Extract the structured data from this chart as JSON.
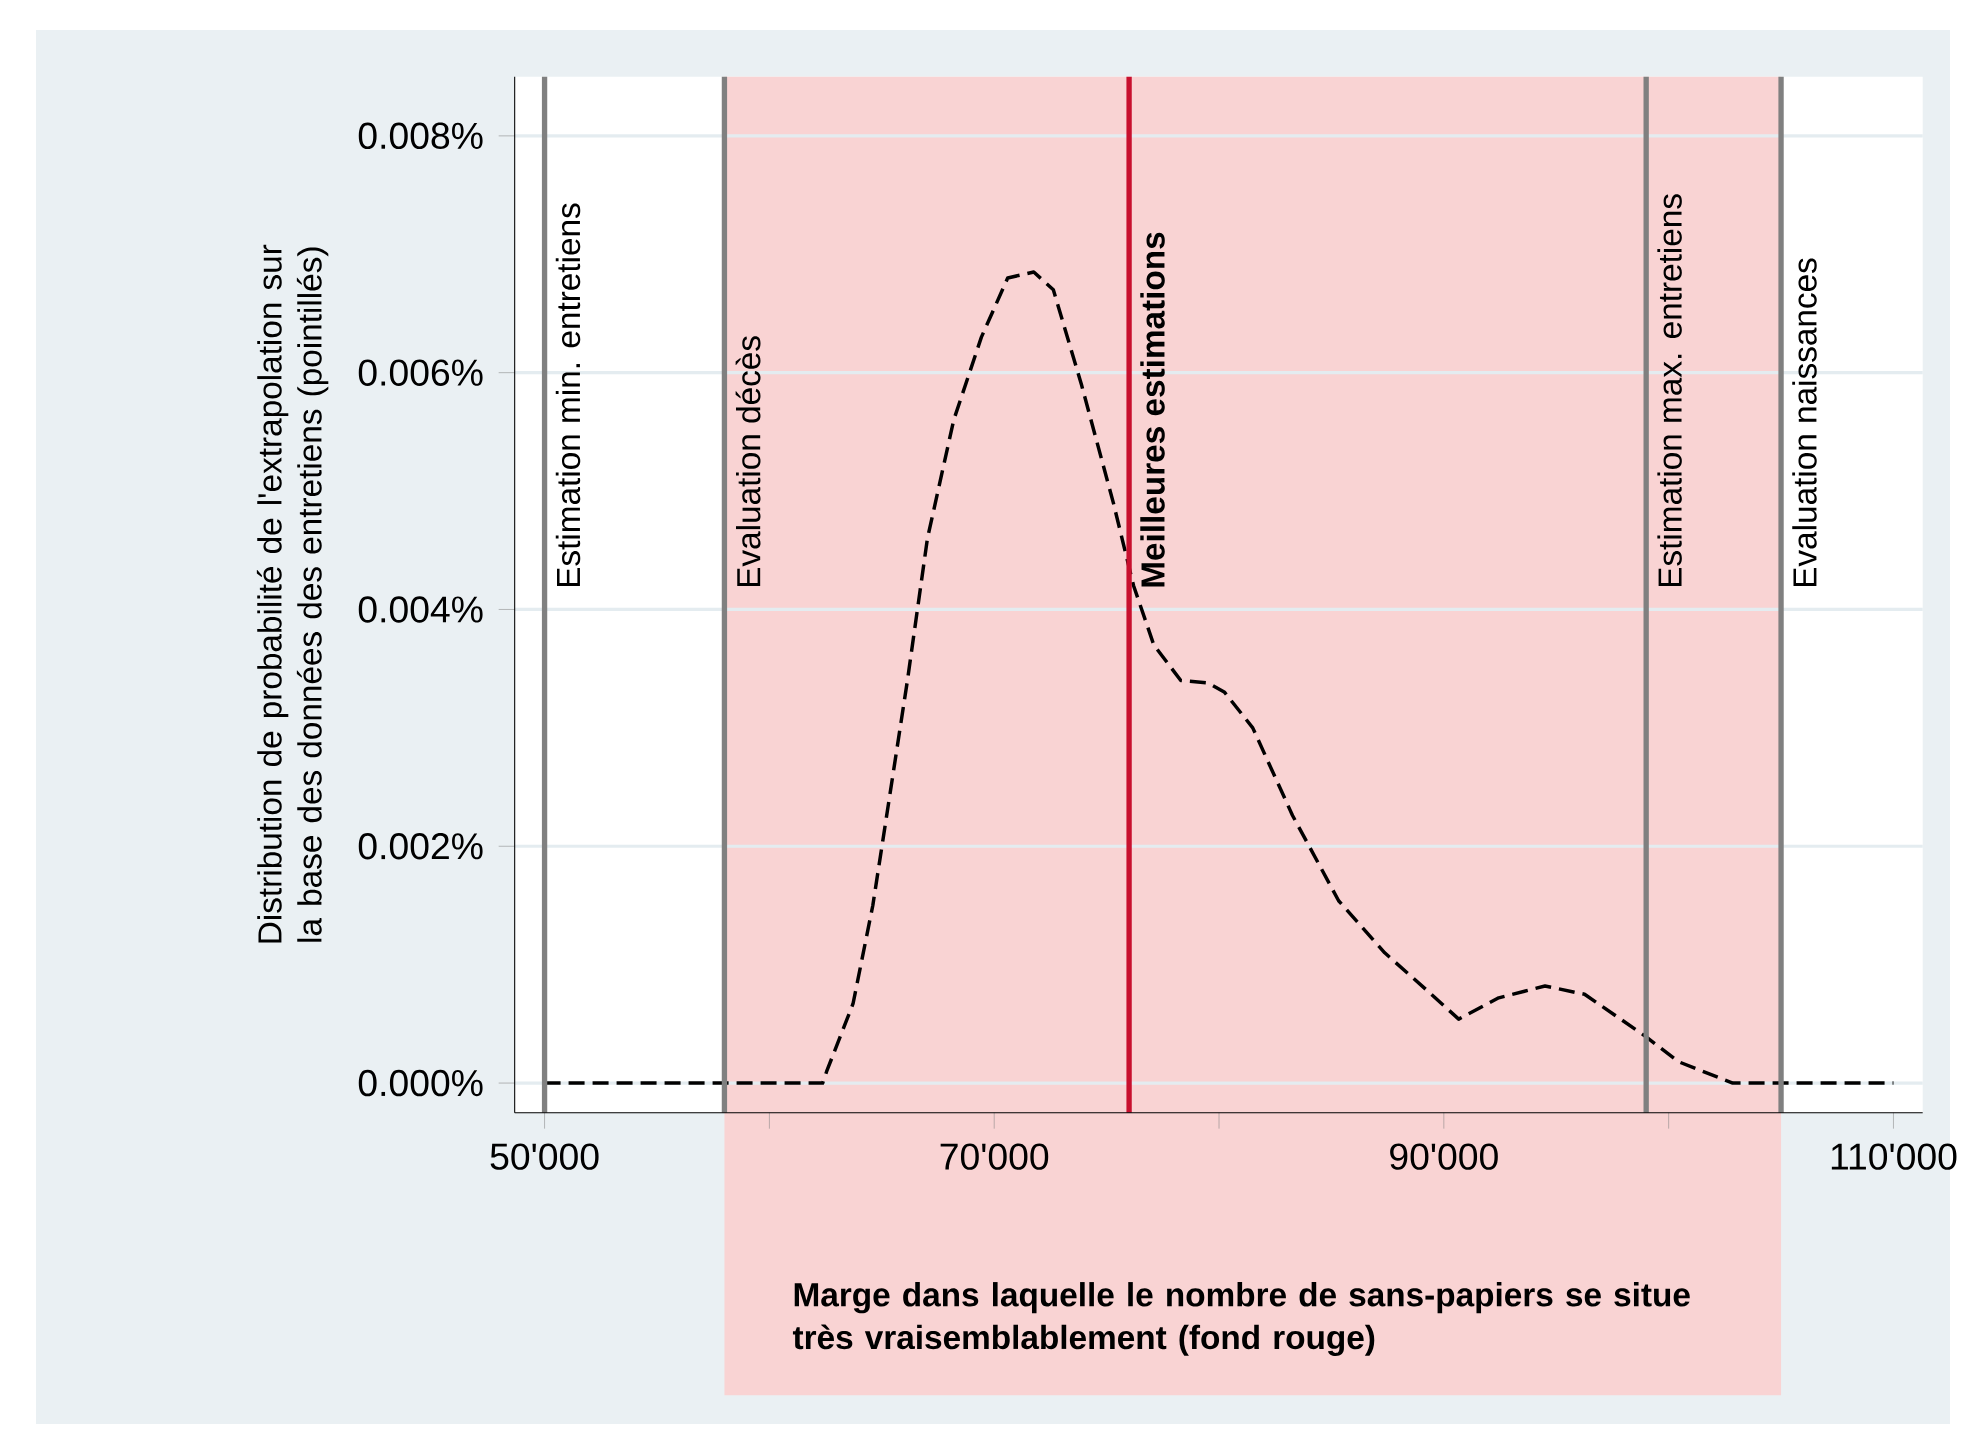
{
  "chart_data": {
    "type": "line",
    "ylabel": "Distribution de probabilité de l'extrapolation sur la base des données des entretiens (pointillés)",
    "x": [
      50000,
      62370,
      62550,
      63720,
      64600,
      65250,
      66140,
      67030,
      68200,
      69430,
      70600,
      71760,
      72630,
      73880,
      75300,
      76200,
      77100,
      78300,
      79500,
      80250,
      81500,
      83270,
      85320,
      87370,
      89150,
      90660,
      92440,
      94500,
      96260,
      98930,
      100440,
      102850,
      103100,
      110000
    ],
    "series": [
      {
        "color": "#000000",
        "line_style": "dashed",
        "values": [
          0,
          0,
          0.0001,
          0.00067,
          0.0015,
          0.0023,
          0.0034,
          0.0046,
          0.0056,
          0.0063,
          0.0068,
          0.00685,
          0.0067,
          0.0059,
          0.0049,
          0.0042,
          0.0037,
          0.0034,
          0.00338,
          0.0033,
          0.003,
          0.00226,
          0.00154,
          0.0011,
          0.0008,
          0.00054,
          0.00072,
          0.00082,
          0.00075,
          0.0004,
          0.00018,
          0,
          0,
          0
        ]
      }
    ],
    "xlim": [
      48670,
      111300
    ],
    "ylim": [
      -0.00025,
      0.0085
    ],
    "xticks": [
      {
        "value": 50000,
        "label": "50'000"
      },
      {
        "value": 60000,
        "label": null
      },
      {
        "value": 70000,
        "label": "70'000"
      },
      {
        "value": 80000,
        "label": null
      },
      {
        "value": 90000,
        "label": "90'000"
      },
      {
        "value": 100000,
        "label": null
      },
      {
        "value": 110000,
        "label": "110'000"
      }
    ],
    "yticks": [
      {
        "value": 0,
        "label": "0.000%"
      },
      {
        "value": 0.002,
        "label": "0.002%"
      },
      {
        "value": 0.004,
        "label": "0.004%"
      },
      {
        "value": 0.006,
        "label": "0.006%"
      },
      {
        "value": 0.008,
        "label": "0.008%"
      }
    ],
    "grid": "y",
    "bands": [
      {
        "axis": "x",
        "from": 58000,
        "to": 105000,
        "label": "Marge dans laquelle le nombre de sans-papiers se situe très vraisemblablement (fond rouge)",
        "color": "#f9d3d3"
      }
    ],
    "ref_lines": [
      {
        "axis": "x",
        "value": 50000,
        "label": "Estimation min. entretiens",
        "color": "#808080"
      },
      {
        "axis": "x",
        "value": 58000,
        "label": "Evaluation décès",
        "color": "#808080"
      },
      {
        "axis": "x",
        "value": 76000,
        "label": "**Meilleures estimations**",
        "color": "#c8102e"
      },
      {
        "axis": "x",
        "value": 99000,
        "label": "Estimation max. entretiens",
        "color": "#808080"
      },
      {
        "axis": "x",
        "value": 105000,
        "label": "Evaluation naissances",
        "color": "#808080"
      }
    ]
  }
}
